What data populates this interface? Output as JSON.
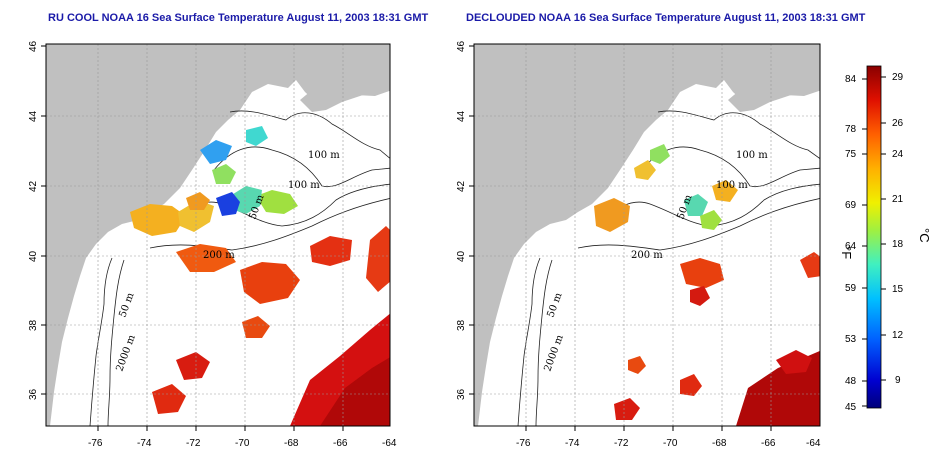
{
  "panels": [
    {
      "title": "RU COOL NOAA 16 Sea Surface Temperature August 11, 2003 18:31 GMT"
    },
    {
      "title": "DECLOUDED NOAA 16 Sea Surface Temperature August 11, 2003 18:31 GMT"
    }
  ],
  "axes": {
    "lon_ticks": [
      "-76",
      "-74",
      "-72",
      "-70",
      "-68",
      "-66",
      "-64"
    ],
    "lat_ticks": [
      "46",
      "44",
      "42",
      "40",
      "38",
      "36"
    ]
  },
  "contour_labels": {
    "left": [
      "100 m",
      "100 m",
      "50 m",
      "200 m",
      "50 m",
      "2000 m"
    ],
    "right": [
      "100 m",
      "100 m",
      "50 m",
      "200 m",
      "50 m",
      "2000 m"
    ]
  },
  "colorbar": {
    "fahrenheit_ticks": [
      "84",
      "78",
      "75",
      "69",
      "64",
      "59",
      "53",
      "48",
      "45"
    ],
    "celsius_ticks": [
      "29",
      "26",
      "24",
      "21",
      "18",
      "15",
      "12",
      "9"
    ],
    "fahrenheit_unit": "°F",
    "celsius_unit": "°C"
  },
  "colors": {
    "land": "#c0c0c0",
    "ocean": "#ffffff",
    "title": "#1a1aa8",
    "warm": "#d01010",
    "cold": "#1010c0"
  }
}
